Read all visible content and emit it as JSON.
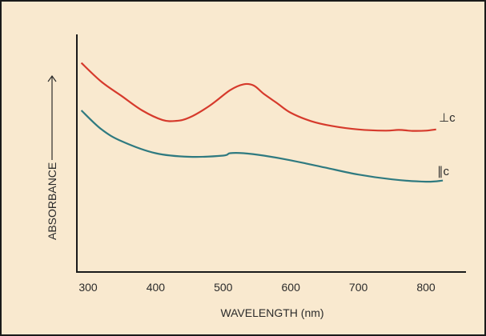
{
  "chart_data": {
    "type": "line",
    "xlabel": "WAVELENGTH (nm)",
    "ylabel": "ABSORBANCE",
    "xlim": [
      290,
      825
    ],
    "ylim": [
      0,
      1
    ],
    "x_ticks": [
      300,
      400,
      500,
      600,
      700,
      800
    ],
    "y_ticks_shown": false,
    "grid": false,
    "legend": "inline-labels",
    "series": [
      {
        "name": "⊥c",
        "color": "#d63a2c",
        "x": [
          290,
          320,
          350,
          380,
          410,
          430,
          450,
          480,
          510,
          530,
          545,
          560,
          580,
          600,
          630,
          660,
          700,
          740,
          760,
          780,
          800,
          815
        ],
        "y": [
          0.88,
          0.8,
          0.74,
          0.68,
          0.64,
          0.636,
          0.65,
          0.7,
          0.765,
          0.79,
          0.785,
          0.75,
          0.71,
          0.67,
          0.635,
          0.615,
          0.6,
          0.595,
          0.598,
          0.594,
          0.595,
          0.6
        ]
      },
      {
        "name": "∥c",
        "color": "#2f7a80",
        "x": [
          290,
          320,
          350,
          400,
          450,
          500,
          510,
          530,
          560,
          600,
          650,
          700,
          750,
          800,
          825
        ],
        "y": [
          0.68,
          0.6,
          0.55,
          0.5,
          0.485,
          0.49,
          0.5,
          0.5,
          0.49,
          0.47,
          0.44,
          0.41,
          0.39,
          0.38,
          0.385
        ]
      }
    ]
  }
}
